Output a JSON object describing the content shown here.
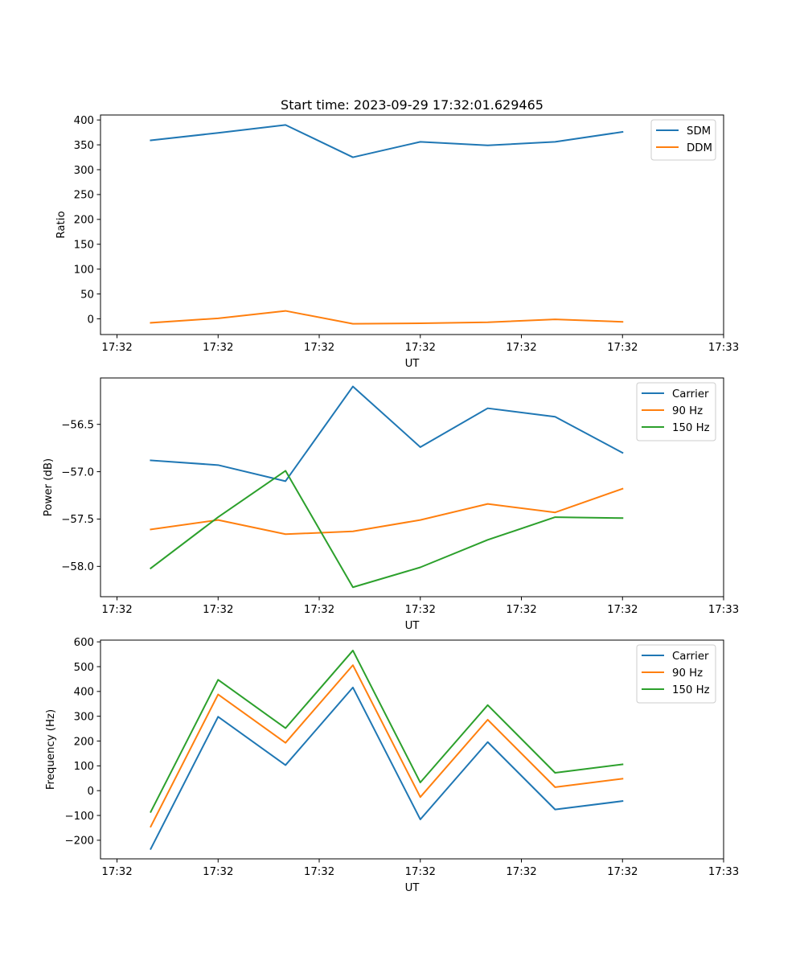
{
  "figure_title": "Start time: 2023-09-29 17:32:01.629465",
  "colors": {
    "blue": "#1f77b4",
    "orange": "#ff7f0e",
    "green": "#2ca02c"
  },
  "chart_data": [
    {
      "type": "line",
      "title": "Start time: 2023-09-29 17:32:01.629465",
      "xlabel": "UT",
      "ylabel": "Ratio",
      "xlim": [
        -0.745,
        8.5
      ],
      "x_ticks": [
        -0.5,
        1,
        2.5,
        4,
        5.5,
        7,
        8.5
      ],
      "x_tick_labels": [
        "17:32",
        "17:32",
        "17:32",
        "17:32",
        "17:32",
        "17:32",
        "17:33"
      ],
      "ylim": [
        -31.6,
        410
      ],
      "y_ticks": [
        0,
        50,
        100,
        150,
        200,
        250,
        300,
        350,
        400
      ],
      "y_tick_labels": [
        "0",
        "50",
        "100",
        "150",
        "200",
        "250",
        "300",
        "350",
        "400"
      ],
      "legend": "top-right",
      "x": [
        0,
        1,
        2,
        3,
        4,
        5,
        6,
        7
      ],
      "series": [
        {
          "name": "SDM",
          "color": "#1f77b4",
          "values": [
            359,
            374,
            390,
            325,
            356,
            349,
            356,
            376
          ]
        },
        {
          "name": "DDM",
          "color": "#ff7f0e",
          "values": [
            -8,
            1,
            16,
            -10,
            -9,
            -7,
            -1,
            -6
          ]
        }
      ]
    },
    {
      "type": "line",
      "title": "",
      "xlabel": "UT",
      "ylabel": "Power (dB)",
      "xlim": [
        -0.745,
        8.5
      ],
      "x_ticks": [
        -0.5,
        1,
        2.5,
        4,
        5.5,
        7,
        8.5
      ],
      "x_tick_labels": [
        "17:32",
        "17:32",
        "17:32",
        "17:32",
        "17:32",
        "17:32",
        "17:33"
      ],
      "ylim": [
        -58.32,
        -56.01
      ],
      "y_ticks": [
        -58.0,
        -57.5,
        -57.0,
        -56.5
      ],
      "y_tick_labels": [
        "−58.0",
        "−57.5",
        "−57.0",
        "−56.5"
      ],
      "legend": "top-right",
      "x": [
        0,
        1,
        2,
        3,
        4,
        5,
        6,
        7
      ],
      "series": [
        {
          "name": "Carrier",
          "color": "#1f77b4",
          "values": [
            -56.88,
            -56.93,
            -57.1,
            -56.1,
            -56.74,
            -56.33,
            -56.42,
            -56.8
          ]
        },
        {
          "name": "90 Hz",
          "color": "#ff7f0e",
          "values": [
            -57.61,
            -57.51,
            -57.66,
            -57.63,
            -57.51,
            -57.34,
            -57.43,
            -57.18
          ]
        },
        {
          "name": "150 Hz",
          "color": "#2ca02c",
          "values": [
            -58.02,
            -57.48,
            -56.99,
            -58.22,
            -58.01,
            -57.72,
            -57.48,
            -57.49
          ]
        }
      ]
    },
    {
      "type": "line",
      "title": "",
      "xlabel": "UT",
      "ylabel": "Frequency (Hz)",
      "xlim": [
        -0.745,
        8.5
      ],
      "x_ticks": [
        -0.5,
        1,
        2.5,
        4,
        5.5,
        7,
        8.5
      ],
      "x_tick_labels": [
        "17:32",
        "17:32",
        "17:32",
        "17:32",
        "17:32",
        "17:32",
        "17:33"
      ],
      "ylim": [
        -275,
        607
      ],
      "y_ticks": [
        -200,
        -100,
        0,
        100,
        200,
        300,
        400,
        500,
        600
      ],
      "y_tick_labels": [
        "−200",
        "−100",
        "0",
        "100",
        "200",
        "300",
        "400",
        "500",
        "600"
      ],
      "legend": "top-right",
      "x": [
        0,
        1,
        2,
        3,
        4,
        5,
        6,
        7
      ],
      "series": [
        {
          "name": "Carrier",
          "color": "#1f77b4",
          "values": [
            -235,
            298,
            103,
            416,
            -116,
            196,
            -76,
            -42
          ]
        },
        {
          "name": "90 Hz",
          "color": "#ff7f0e",
          "values": [
            -145,
            388,
            193,
            506,
            -26,
            286,
            14,
            48
          ]
        },
        {
          "name": "150 Hz",
          "color": "#2ca02c",
          "values": [
            -86,
            447,
            252,
            565,
            33,
            345,
            72,
            106
          ]
        }
      ]
    }
  ]
}
